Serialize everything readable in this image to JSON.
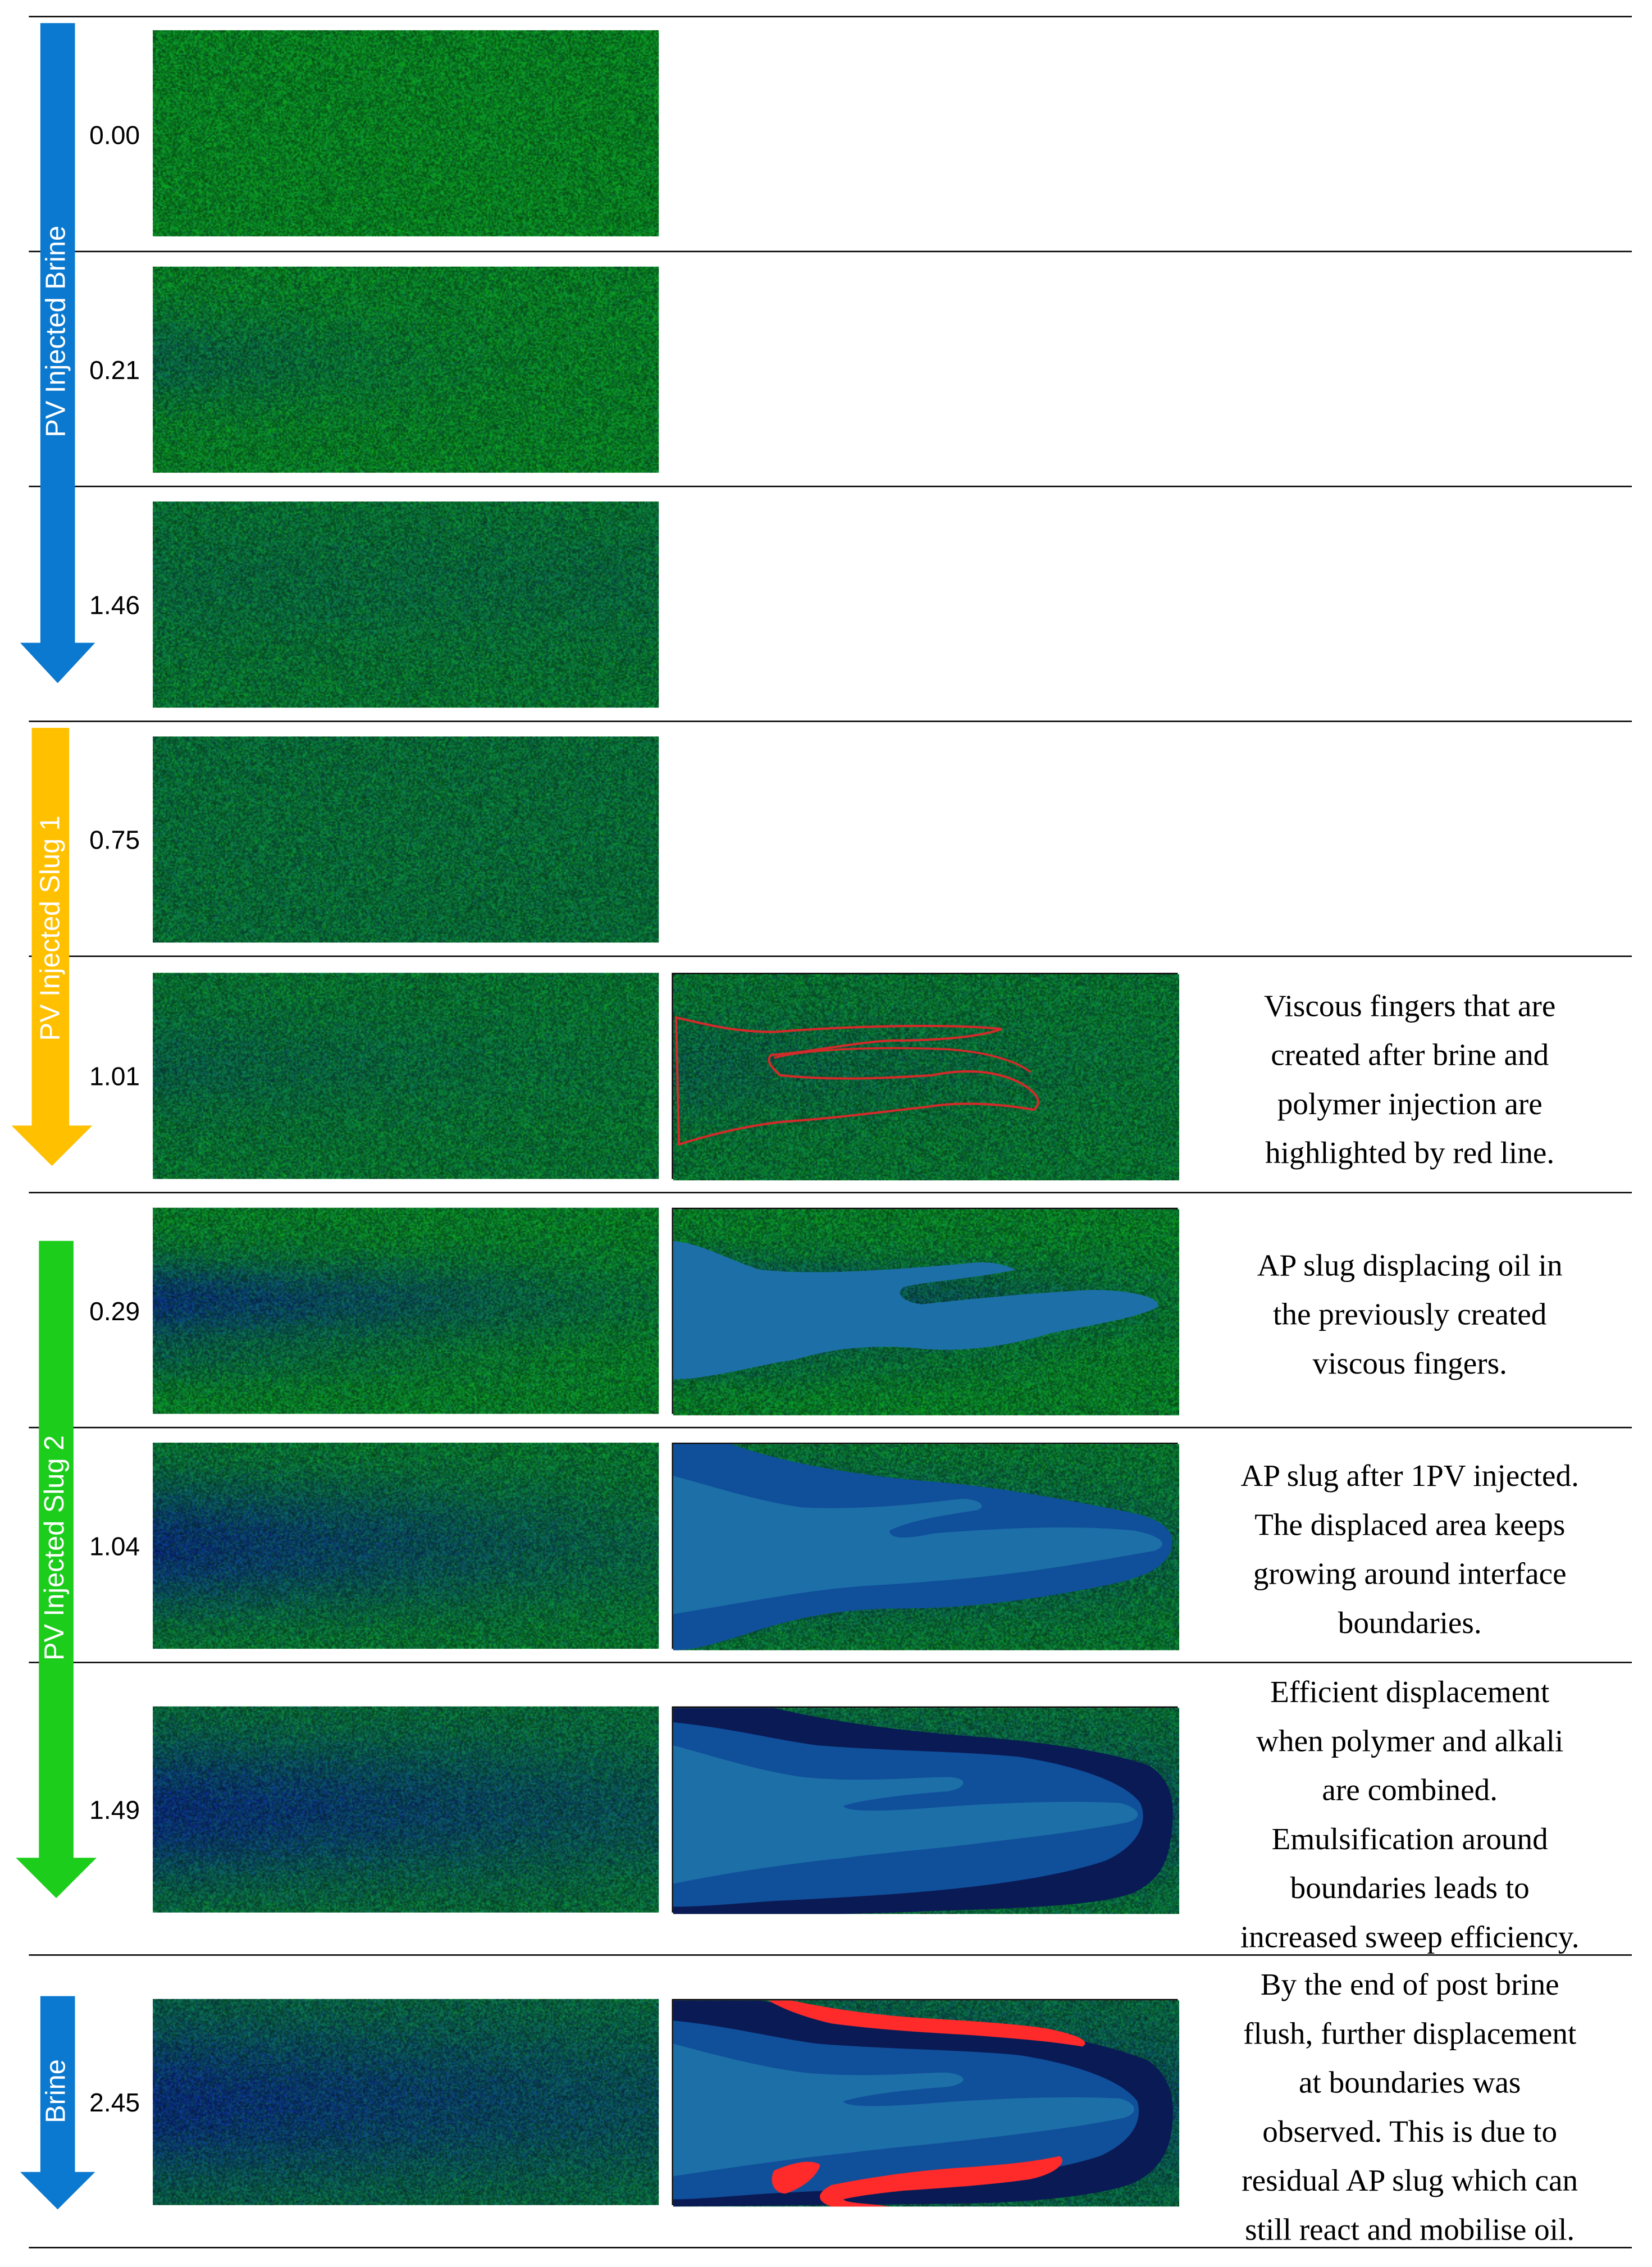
{
  "colors": {
    "brine_arrow": "#0b79cf",
    "slug1_arrow": "#ffc000",
    "slug2_arrow": "#1ccd1c",
    "post_brine_arrow": "#0b79cf",
    "oil_green": "#1d7a2c",
    "displaced_blue": "#12357a",
    "ap_slug_light": "#1d6fa8",
    "ap_slug_mid": "#104f9a",
    "emulsion_dark": "#0a1a55",
    "residual_red": "#ff2a2a",
    "finger_outline": "#d42a2a"
  },
  "stages": [
    {
      "label": "PV Injected Brine",
      "arrow_icon": "down-arrow-icon"
    },
    {
      "label": "PV Injected Slug 1",
      "arrow_icon": "down-arrow-icon"
    },
    {
      "label": "PV Injected Slug 2",
      "arrow_icon": "down-arrow-icon"
    },
    {
      "label": "Brine",
      "arrow_icon": "down-arrow-icon"
    }
  ],
  "rows": [
    {
      "pv": "0.00",
      "note": ""
    },
    {
      "pv": "0.21",
      "note": ""
    },
    {
      "pv": "1.46",
      "note": ""
    },
    {
      "pv": "0.75",
      "note": ""
    },
    {
      "pv": "1.01",
      "note": "Viscous fingers that are\ncreated after brine and\npolymer injection are\nhighlighted by red line."
    },
    {
      "pv": "0.29",
      "note": "AP slug displacing oil in\nthe previously created\nviscous fingers."
    },
    {
      "pv": "1.04",
      "note": "AP slug after 1PV injected.\nThe displaced area keeps\ngrowing around interface\nboundaries."
    },
    {
      "pv": "1.49",
      "note": "Efficient displacement\nwhen polymer and alkali\nare    combined.\nEmulsification around\nboundaries leads to\nincreased sweep efficiency."
    },
    {
      "pv": "2.45",
      "note": "By the end of post brine\nflush, further displacement\nat boundaries was\nobserved. This is due to\nresidual AP slug which can\nstill react and mobilise oil."
    }
  ]
}
